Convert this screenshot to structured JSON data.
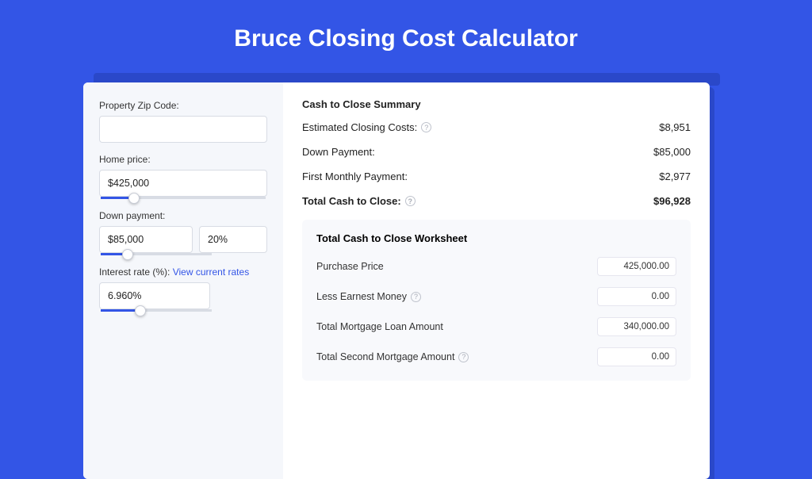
{
  "page": {
    "title": "Bruce Closing Cost Calculator",
    "background_color": "#3355e6",
    "shadow_color": "#2a48c9"
  },
  "inputs": {
    "zip_label": "Property Zip Code:",
    "zip_value": "",
    "home_price_label": "Home price:",
    "home_price_value": "$425,000",
    "home_price_slider_pct": 20,
    "down_payment_label": "Down payment:",
    "down_payment_value": "$85,000",
    "down_payment_pct": "20%",
    "down_payment_slider_pct": 24,
    "interest_label": "Interest rate (%): ",
    "interest_link": "View current rates",
    "interest_value": "6.960%",
    "interest_slider_pct": 36
  },
  "summary": {
    "title": "Cash to Close Summary",
    "rows": [
      {
        "label": "Estimated Closing Costs:",
        "value": "$8,951",
        "help": true,
        "bold": false
      },
      {
        "label": "Down Payment:",
        "value": "$85,000",
        "help": false,
        "bold": false
      },
      {
        "label": "First Monthly Payment:",
        "value": "$2,977",
        "help": false,
        "bold": false
      },
      {
        "label": "Total Cash to Close:",
        "value": "$96,928",
        "help": true,
        "bold": true
      }
    ]
  },
  "worksheet": {
    "title": "Total Cash to Close Worksheet",
    "rows": [
      {
        "label": "Purchase Price",
        "value": "425,000.00",
        "help": false
      },
      {
        "label": "Less Earnest Money",
        "value": "0.00",
        "help": true
      },
      {
        "label": "Total Mortgage Loan Amount",
        "value": "340,000.00",
        "help": false
      },
      {
        "label": "Total Second Mortgage Amount",
        "value": "0.00",
        "help": true
      }
    ]
  },
  "styling": {
    "input_border": "#d8dce4",
    "slider_fill": "#3355e6",
    "link_color": "#3355e6",
    "worksheet_bg": "#f8f9fc",
    "left_bg": "#f5f7fb"
  }
}
